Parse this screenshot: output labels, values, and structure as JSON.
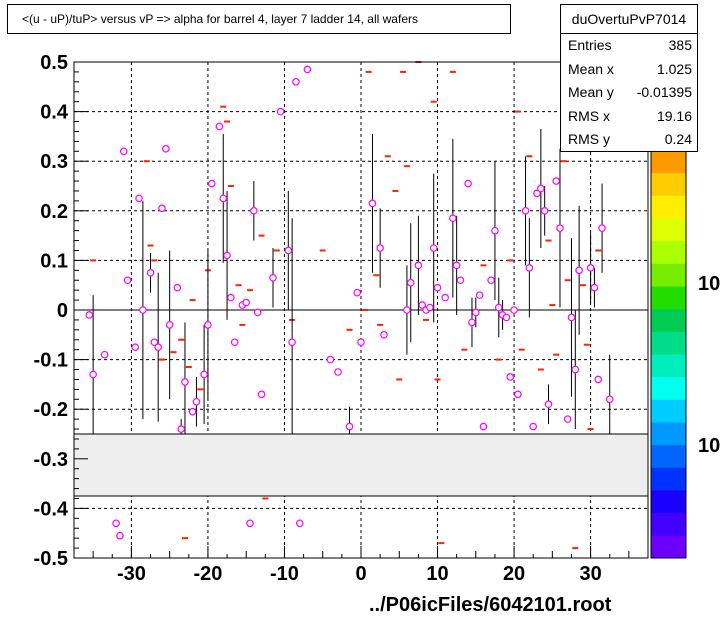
{
  "title": "<(u - uP)/tuP> versus   vP => alpha for barrel 4, layer 7 ladder 14, all wafers",
  "footer": "../P06icFiles/6042101.root",
  "stats": {
    "name": "duOvertuPvP7014",
    "rows": [
      {
        "label": "Entries",
        "value": "385"
      },
      {
        "label": "Mean x",
        "value": "1.025"
      },
      {
        "label": "Mean y",
        "value": "-0.01395"
      },
      {
        "label": "RMS x",
        "value": "19.16"
      },
      {
        "label": "RMS y",
        "value": "0.24"
      }
    ]
  },
  "colors": {
    "marker": "#ff00ff",
    "dash": "#ff2200",
    "band": "#eeeeee",
    "palette": [
      "#6b00ff",
      "#4400ff",
      "#1a00ff",
      "#0033ff",
      "#0066ff",
      "#0099ff",
      "#00ccff",
      "#00ffee",
      "#00eebb",
      "#00dd88",
      "#00cc55",
      "#22dd00",
      "#77ee00",
      "#aaff00",
      "#ddff00",
      "#ffee00",
      "#ffcc00",
      "#ff9900"
    ]
  },
  "palette_labels": [
    "10",
    "10"
  ],
  "chart_data": {
    "type": "scatter",
    "title": "<(u - uP)/tuP> versus   vP => alpha for barrel 4, layer 7 ladder 14, all wafers",
    "xlabel": "",
    "ylabel": "",
    "xlim": [
      -37.5,
      37.5
    ],
    "ylim": [
      -0.5,
      0.5
    ],
    "xticks": [
      -30,
      -20,
      -10,
      0,
      10,
      20,
      30
    ],
    "xtick_labels": [
      "-30",
      "-20",
      "-10",
      "0",
      "10",
      "20",
      "30"
    ],
    "yticks": [
      -0.5,
      -0.4,
      -0.3,
      -0.2,
      -0.1,
      0,
      0.1,
      0.2,
      0.3,
      0.4,
      0.5
    ],
    "ytick_labels": [
      "-0.5",
      "-0.4",
      "-0.3",
      "-0.2",
      "-0.1",
      "0",
      "0.1",
      "0.2",
      "0.3",
      "0.4",
      "0.5"
    ],
    "grid": true,
    "excluded_band": [
      -0.375,
      -0.25
    ],
    "points": [
      {
        "x": -35.5,
        "y": -0.01
      },
      {
        "x": -35.0,
        "y": -0.13,
        "err": 0.16
      },
      {
        "x": -33.5,
        "y": -0.09
      },
      {
        "x": -32.0,
        "y": -0.43
      },
      {
        "x": -31.5,
        "y": -0.455
      },
      {
        "x": -31.0,
        "y": 0.32
      },
      {
        "x": -30.5,
        "y": 0.06
      },
      {
        "x": -29.5,
        "y": -0.075
      },
      {
        "x": -29.0,
        "y": 0.225
      },
      {
        "x": -28.5,
        "y": 0.0,
        "err": 0.22
      },
      {
        "x": -27.5,
        "y": 0.075,
        "err": 0.04
      },
      {
        "x": -27.0,
        "y": -0.065
      },
      {
        "x": -26.5,
        "y": -0.075,
        "err": 0.15
      },
      {
        "x": -26.0,
        "y": 0.205
      },
      {
        "x": -25.5,
        "y": 0.325
      },
      {
        "x": -25.0,
        "y": -0.03,
        "err": 0.15
      },
      {
        "x": -24.0,
        "y": 0.045
      },
      {
        "x": -23.5,
        "y": -0.24,
        "err": 0.02
      },
      {
        "x": -23.0,
        "y": -0.145,
        "err": 0.12
      },
      {
        "x": -22.0,
        "y": -0.205
      },
      {
        "x": -21.5,
        "y": -0.185,
        "err": 0.05
      },
      {
        "x": -20.5,
        "y": -0.13,
        "err": 0.1
      },
      {
        "x": -20.0,
        "y": -0.03,
        "err": 0.15
      },
      {
        "x": -19.5,
        "y": 0.255
      },
      {
        "x": -18.5,
        "y": 0.37
      },
      {
        "x": -18.0,
        "y": 0.225,
        "err": 0.13
      },
      {
        "x": -17.5,
        "y": 0.11,
        "err": 0.13
      },
      {
        "x": -17.0,
        "y": 0.025
      },
      {
        "x": -16.5,
        "y": -0.065
      },
      {
        "x": -15.5,
        "y": 0.01
      },
      {
        "x": -15.0,
        "y": 0.015
      },
      {
        "x": -14.5,
        "y": -0.43
      },
      {
        "x": -14.0,
        "y": 0.2,
        "err": 0.06
      },
      {
        "x": -13.5,
        "y": -0.005
      },
      {
        "x": -13.0,
        "y": -0.17
      },
      {
        "x": -11.5,
        "y": 0.065,
        "err": 0.06
      },
      {
        "x": -10.5,
        "y": 0.4
      },
      {
        "x": -9.5,
        "y": 0.12,
        "err": 0.12
      },
      {
        "x": -9.0,
        "y": -0.065,
        "err": 0.25
      },
      {
        "x": -8.5,
        "y": 0.46
      },
      {
        "x": -8.0,
        "y": -0.43
      },
      {
        "x": -7.0,
        "y": 0.485
      },
      {
        "x": -4.0,
        "y": -0.1
      },
      {
        "x": -3.0,
        "y": -0.125
      },
      {
        "x": -1.5,
        "y": -0.235,
        "err": 0.04
      },
      {
        "x": -0.5,
        "y": 0.035
      },
      {
        "x": 0.0,
        "y": -0.065
      },
      {
        "x": 1.5,
        "y": 0.215,
        "err": 0.14
      },
      {
        "x": 2.5,
        "y": 0.125,
        "err": 0.08
      },
      {
        "x": 3.0,
        "y": -0.05
      },
      {
        "x": 6.0,
        "y": 0.0,
        "err": 0.09
      },
      {
        "x": 6.5,
        "y": 0.055,
        "err": 0.12
      },
      {
        "x": 7.5,
        "y": 0.09,
        "err": 0.1
      },
      {
        "x": 8.0,
        "y": 0.01
      },
      {
        "x": 8.5,
        "y": 0.0
      },
      {
        "x": 9.0,
        "y": 0.005
      },
      {
        "x": 9.5,
        "y": 0.125,
        "err": 0.15
      },
      {
        "x": 10.0,
        "y": 0.045
      },
      {
        "x": 11.0,
        "y": 0.025
      },
      {
        "x": 12.0,
        "y": 0.185,
        "err": 0.16
      },
      {
        "x": 12.5,
        "y": 0.09,
        "err": 0.1
      },
      {
        "x": 13.0,
        "y": 0.06
      },
      {
        "x": 14.0,
        "y": 0.255
      },
      {
        "x": 14.5,
        "y": -0.025,
        "err": 0.05
      },
      {
        "x": 15.0,
        "y": -0.005,
        "err": 0.03
      },
      {
        "x": 15.5,
        "y": 0.03
      },
      {
        "x": 16.0,
        "y": -0.235
      },
      {
        "x": 17.0,
        "y": 0.06
      },
      {
        "x": 17.5,
        "y": 0.16,
        "err": 0.14
      },
      {
        "x": 18.0,
        "y": 0.005,
        "err": 0.06
      },
      {
        "x": 18.5,
        "y": -0.01,
        "err": 0.03
      },
      {
        "x": 19.0,
        "y": -0.015
      },
      {
        "x": 19.5,
        "y": -0.135
      },
      {
        "x": 20.0,
        "y": 0.0
      },
      {
        "x": 20.5,
        "y": -0.17
      },
      {
        "x": 21.5,
        "y": 0.2,
        "err": 0.11
      },
      {
        "x": 22.0,
        "y": 0.085,
        "err": 0.1
      },
      {
        "x": 22.5,
        "y": -0.235
      },
      {
        "x": 23.0,
        "y": 0.235
      },
      {
        "x": 23.5,
        "y": 0.245,
        "err": 0.12
      },
      {
        "x": 24.0,
        "y": 0.2,
        "err": 0.05
      },
      {
        "x": 24.5,
        "y": -0.19,
        "err": 0.04
      },
      {
        "x": 25.5,
        "y": 0.26
      },
      {
        "x": 26.0,
        "y": 0.165,
        "err": 0.16
      },
      {
        "x": 27.0,
        "y": -0.22
      },
      {
        "x": 27.5,
        "y": -0.015,
        "err": 0.16
      },
      {
        "x": 28.0,
        "y": -0.12,
        "err": 0.12
      },
      {
        "x": 28.5,
        "y": 0.08,
        "err": 0.13
      },
      {
        "x": 30.0,
        "y": 0.085,
        "err": 0.07
      },
      {
        "x": 30.5,
        "y": 0.045,
        "err": 0.04
      },
      {
        "x": 31.0,
        "y": -0.14
      },
      {
        "x": 31.5,
        "y": 0.165,
        "err": 0.09
      },
      {
        "x": 32.5,
        "y": -0.18,
        "err": 0.09
      }
    ],
    "dashes": [
      {
        "x": -35.0,
        "y": 0.1
      },
      {
        "x": -28.0,
        "y": 0.3
      },
      {
        "x": -27.5,
        "y": 0.13
      },
      {
        "x": -27.0,
        "y": 0.1
      },
      {
        "x": -26.0,
        "y": -0.1
      },
      {
        "x": -24.5,
        "y": -0.085
      },
      {
        "x": -23.5,
        "y": -0.06
      },
      {
        "x": -23.0,
        "y": -0.46
      },
      {
        "x": -22.5,
        "y": -0.115
      },
      {
        "x": -22.0,
        "y": 0.02
      },
      {
        "x": -21.0,
        "y": -0.16
      },
      {
        "x": -20.0,
        "y": 0.08
      },
      {
        "x": -18.0,
        "y": 0.41
      },
      {
        "x": -17.5,
        "y": 0.38
      },
      {
        "x": -17.0,
        "y": 0.25
      },
      {
        "x": -16.0,
        "y": 0.05
      },
      {
        "x": -15.5,
        "y": -0.03
      },
      {
        "x": -14.5,
        "y": 0.04
      },
      {
        "x": -13.0,
        "y": 0.15
      },
      {
        "x": -12.5,
        "y": -0.38
      },
      {
        "x": -11.0,
        "y": 0.12
      },
      {
        "x": -9.0,
        "y": -0.02
      },
      {
        "x": -5.0,
        "y": 0.12
      },
      {
        "x": -1.5,
        "y": -0.04
      },
      {
        "x": 0.5,
        "y": 0.0
      },
      {
        "x": 1.0,
        "y": 0.48
      },
      {
        "x": 2.0,
        "y": 0.07
      },
      {
        "x": 2.5,
        "y": -0.03
      },
      {
        "x": 3.5,
        "y": 0.31
      },
      {
        "x": 4.5,
        "y": 0.24
      },
      {
        "x": 5.0,
        "y": -0.14
      },
      {
        "x": 5.5,
        "y": 0.48
      },
      {
        "x": 6.0,
        "y": 0.29
      },
      {
        "x": 7.5,
        "y": 0.5
      },
      {
        "x": 8.5,
        "y": -0.02
      },
      {
        "x": 9.5,
        "y": 0.42
      },
      {
        "x": 10.0,
        "y": -0.14
      },
      {
        "x": 10.5,
        "y": -0.47
      },
      {
        "x": 12.0,
        "y": 0.48
      },
      {
        "x": 13.5,
        "y": -0.08
      },
      {
        "x": 16.0,
        "y": 0.09
      },
      {
        "x": 18.0,
        "y": -0.1
      },
      {
        "x": 19.5,
        "y": 0.1
      },
      {
        "x": 20.5,
        "y": 0.4
      },
      {
        "x": 21.0,
        "y": -0.08
      },
      {
        "x": 22.0,
        "y": 0.31
      },
      {
        "x": 23.5,
        "y": -0.12
      },
      {
        "x": 24.5,
        "y": 0.14
      },
      {
        "x": 25.0,
        "y": 0.01
      },
      {
        "x": 25.5,
        "y": -0.09
      },
      {
        "x": 26.5,
        "y": 0.3
      },
      {
        "x": 27.0,
        "y": 0.06
      },
      {
        "x": 28.0,
        "y": -0.48
      },
      {
        "x": 29.0,
        "y": 0.05
      },
      {
        "x": 29.5,
        "y": -0.07
      },
      {
        "x": 30.0,
        "y": -0.24
      },
      {
        "x": 31.0,
        "y": 0.12
      }
    ]
  }
}
